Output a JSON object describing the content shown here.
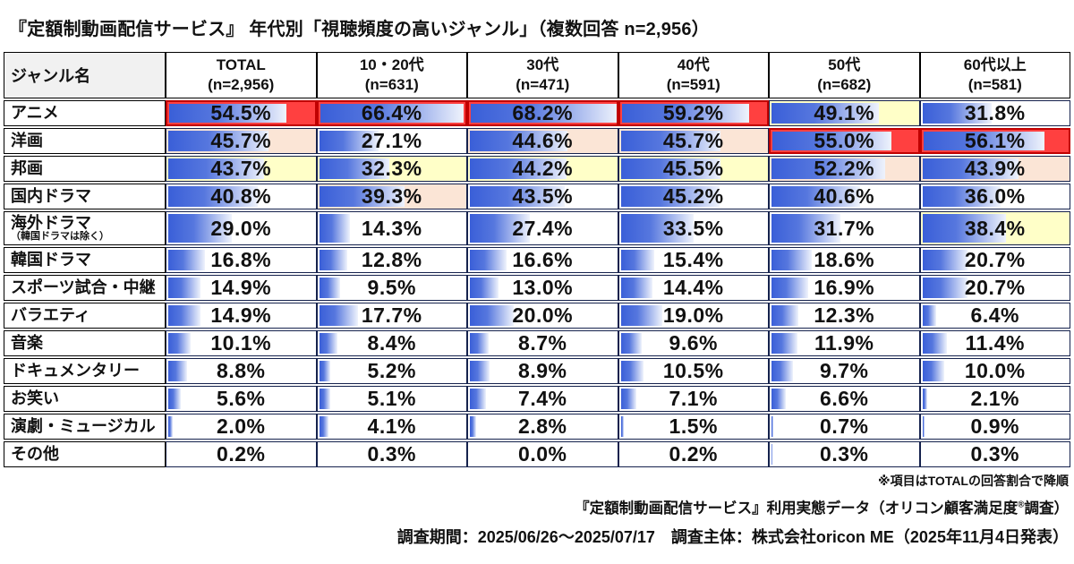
{
  "chart_data": {
    "type": "bar",
    "title": "『定額制動画配信サービス』 年代別「視聴頻度の高いジャンル」（複数回答 n=2,956）",
    "genre_header": "ジャンル名",
    "bar_scale_max": 68.2,
    "rank_meaning": {
      "r1": "column-1st-place",
      "r2": "column-2nd-place",
      "r3": "column-3rd-place"
    },
    "columns": [
      {
        "label": "TOTAL",
        "n": "(n=2,956)"
      },
      {
        "label": "10・20代",
        "n": "(n=631)"
      },
      {
        "label": "30代",
        "n": "(n=471)"
      },
      {
        "label": "40代",
        "n": "(n=591)"
      },
      {
        "label": "50代",
        "n": "(n=682)"
      },
      {
        "label": "60代以上",
        "n": "(n=581)"
      }
    ],
    "rows": [
      {
        "genre": "アニメ",
        "note": "",
        "values": [
          54.5,
          66.4,
          68.2,
          59.2,
          49.1,
          31.8
        ],
        "ranks": [
          1,
          1,
          1,
          1,
          3,
          0
        ]
      },
      {
        "genre": "洋画",
        "note": "",
        "values": [
          45.7,
          27.1,
          44.6,
          45.7,
          55.0,
          56.1
        ],
        "ranks": [
          2,
          0,
          2,
          2,
          1,
          1
        ]
      },
      {
        "genre": "邦画",
        "note": "",
        "values": [
          43.7,
          32.3,
          44.2,
          45.5,
          52.2,
          43.9
        ],
        "ranks": [
          3,
          3,
          3,
          3,
          2,
          2
        ]
      },
      {
        "genre": "国内ドラマ",
        "note": "",
        "values": [
          40.8,
          39.3,
          43.5,
          45.2,
          40.6,
          36.0
        ],
        "ranks": [
          0,
          2,
          0,
          0,
          0,
          0
        ]
      },
      {
        "genre": "海外ドラマ",
        "note": "（韓国ドラマは除く）",
        "values": [
          29.0,
          14.3,
          27.4,
          33.5,
          31.7,
          38.4
        ],
        "ranks": [
          0,
          0,
          0,
          0,
          0,
          3
        ]
      },
      {
        "genre": "韓国ドラマ",
        "note": "",
        "values": [
          16.8,
          12.8,
          16.6,
          15.4,
          18.6,
          20.7
        ],
        "ranks": [
          0,
          0,
          0,
          0,
          0,
          0
        ]
      },
      {
        "genre": "スポーツ試合・中継",
        "note": "",
        "values": [
          14.9,
          9.5,
          13.0,
          14.4,
          16.9,
          20.7
        ],
        "ranks": [
          0,
          0,
          0,
          0,
          0,
          0
        ]
      },
      {
        "genre": "バラエティ",
        "note": "",
        "values": [
          14.9,
          17.7,
          20.0,
          19.0,
          12.3,
          6.4
        ],
        "ranks": [
          0,
          0,
          0,
          0,
          0,
          0
        ]
      },
      {
        "genre": "音楽",
        "note": "",
        "values": [
          10.1,
          8.4,
          8.7,
          9.6,
          11.9,
          11.4
        ],
        "ranks": [
          0,
          0,
          0,
          0,
          0,
          0
        ]
      },
      {
        "genre": "ドキュメンタリー",
        "note": "",
        "values": [
          8.8,
          5.2,
          8.9,
          10.5,
          9.7,
          10.0
        ],
        "ranks": [
          0,
          0,
          0,
          0,
          0,
          0
        ]
      },
      {
        "genre": "お笑い",
        "note": "",
        "values": [
          5.6,
          5.1,
          7.4,
          7.1,
          6.6,
          2.1
        ],
        "ranks": [
          0,
          0,
          0,
          0,
          0,
          0
        ]
      },
      {
        "genre": "演劇・ミュージカル",
        "note": "",
        "values": [
          2.0,
          4.1,
          2.8,
          1.5,
          0.7,
          0.9
        ],
        "ranks": [
          0,
          0,
          0,
          0,
          0,
          0
        ]
      },
      {
        "genre": "その他",
        "note": "",
        "values": [
          0.2,
          0.3,
          0.0,
          0.2,
          0.3,
          0.3
        ],
        "ranks": [
          0,
          0,
          0,
          0,
          0,
          0
        ]
      }
    ]
  },
  "footer": {
    "sort_note": "※項目はTOTALの回答割合で降順",
    "source_pre": "『定額制動画配信サービス』利用実態データ（オリコン顧客満足度",
    "source_sup": "®",
    "source_post": "調査）",
    "survey_info": "調査期間：2025/06/26～2025/07/17　調査主体：株式会社oricon ME（2025年11月4日発表）"
  },
  "colors": {
    "rank1_bg": "#ff4040",
    "rank1_border": "#c00000",
    "rank2_bg": "#fbe5d6",
    "rank3_bg": "#ffffc8",
    "bar_start": "#3a5fd8",
    "bar_mid": "#5677de",
    "bar_end": "#eff3fc"
  }
}
